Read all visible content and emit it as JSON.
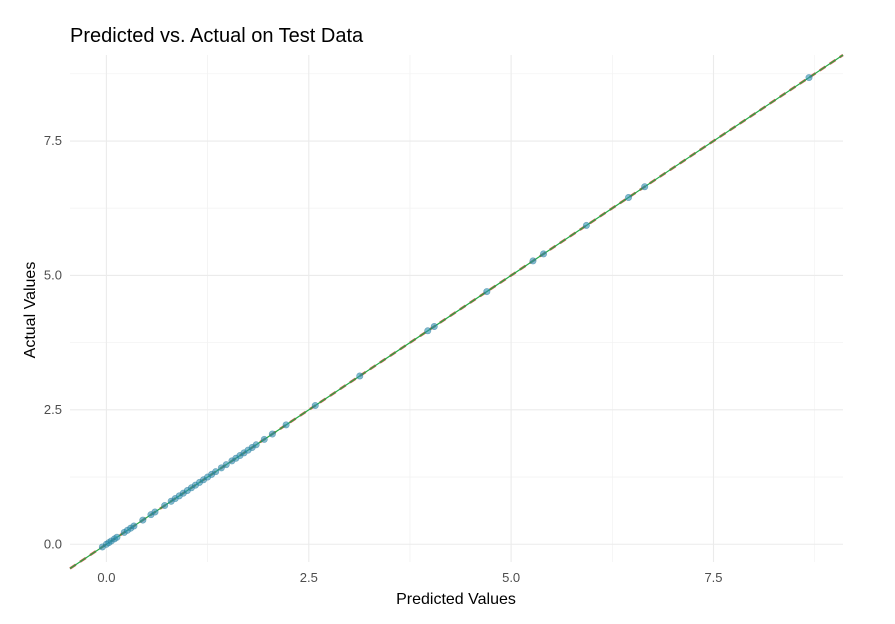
{
  "chart_data": {
    "type": "scatter",
    "title": "Predicted vs. Actual on Test Data",
    "xlabel": "Predicted Values",
    "ylabel": "Actual Values",
    "xlim": [
      -0.45,
      9.1
    ],
    "ylim": [
      -0.33,
      9.1
    ],
    "x_ticks": [
      0.0,
      2.5,
      5.0,
      7.5
    ],
    "x_tick_labels": [
      "0.0",
      "2.5",
      "5.0",
      "7.5"
    ],
    "y_ticks": [
      0.0,
      2.5,
      5.0,
      7.5
    ],
    "y_tick_labels": [
      "0.0",
      "2.5",
      "5.0",
      "7.5"
    ],
    "grid": true,
    "reference_line": {
      "slope": 1,
      "intercept": 0,
      "style": "dashed",
      "color": "#c0392b"
    },
    "fit_line": {
      "slope": 1,
      "intercept": 0,
      "style": "solid",
      "color": "#27a844"
    },
    "point_color": "#2c8fb3",
    "points": [
      [
        -0.05,
        -0.05
      ],
      [
        0.0,
        0.0
      ],
      [
        0.03,
        0.03
      ],
      [
        0.06,
        0.06
      ],
      [
        0.1,
        0.1
      ],
      [
        0.13,
        0.13
      ],
      [
        0.22,
        0.22
      ],
      [
        0.26,
        0.26
      ],
      [
        0.3,
        0.3
      ],
      [
        0.34,
        0.34
      ],
      [
        0.45,
        0.45
      ],
      [
        0.55,
        0.55
      ],
      [
        0.6,
        0.6
      ],
      [
        0.72,
        0.72
      ],
      [
        0.8,
        0.8
      ],
      [
        0.85,
        0.85
      ],
      [
        0.9,
        0.9
      ],
      [
        0.95,
        0.95
      ],
      [
        1.0,
        1.0
      ],
      [
        1.05,
        1.05
      ],
      [
        1.1,
        1.1
      ],
      [
        1.15,
        1.15
      ],
      [
        1.2,
        1.2
      ],
      [
        1.25,
        1.25
      ],
      [
        1.3,
        1.3
      ],
      [
        1.35,
        1.35
      ],
      [
        1.42,
        1.42
      ],
      [
        1.48,
        1.48
      ],
      [
        1.55,
        1.55
      ],
      [
        1.6,
        1.6
      ],
      [
        1.65,
        1.65
      ],
      [
        1.7,
        1.7
      ],
      [
        1.75,
        1.75
      ],
      [
        1.8,
        1.8
      ],
      [
        1.85,
        1.85
      ],
      [
        1.95,
        1.95
      ],
      [
        2.05,
        2.05
      ],
      [
        2.22,
        2.22
      ],
      [
        2.58,
        2.58
      ],
      [
        3.13,
        3.13
      ],
      [
        3.97,
        3.97
      ],
      [
        4.05,
        4.05
      ],
      [
        4.7,
        4.7
      ],
      [
        5.27,
        5.27
      ],
      [
        5.4,
        5.4
      ],
      [
        5.93,
        5.93
      ],
      [
        6.45,
        6.45
      ],
      [
        6.65,
        6.65
      ],
      [
        8.68,
        8.68
      ]
    ]
  }
}
